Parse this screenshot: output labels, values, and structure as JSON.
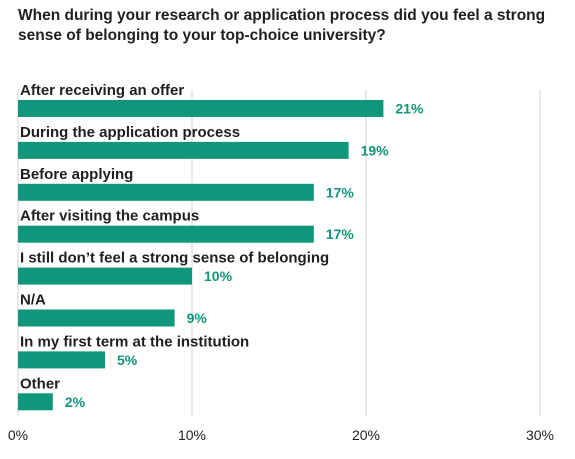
{
  "chart_data": {
    "type": "bar",
    "orientation": "horizontal",
    "title": "When during your research or application process did you feel a strong sense of belonging to your top-choice university?",
    "categories": [
      "After receiving an offer",
      "During the application process",
      "Before applying",
      "After visiting the campus",
      "I still don’t feel a strong sense of belonging",
      "N/A",
      "In my first term at the institution",
      "Other"
    ],
    "values": [
      21,
      19,
      17,
      17,
      10,
      9,
      5,
      2
    ],
    "value_labels": [
      "21%",
      "19%",
      "17%",
      "17%",
      "10%",
      "9%",
      "5%",
      "2%"
    ],
    "xlim": [
      0,
      30
    ],
    "x_ticks": [
      0,
      10,
      20,
      30
    ],
    "x_tick_labels": [
      "0%",
      "10%",
      "20%",
      "30%"
    ],
    "grid": true,
    "legend": "none",
    "colors": {
      "bar": "#10967a",
      "label": "#10967a",
      "grid": "#d0d0d0",
      "text": "#1f1f1f"
    }
  }
}
